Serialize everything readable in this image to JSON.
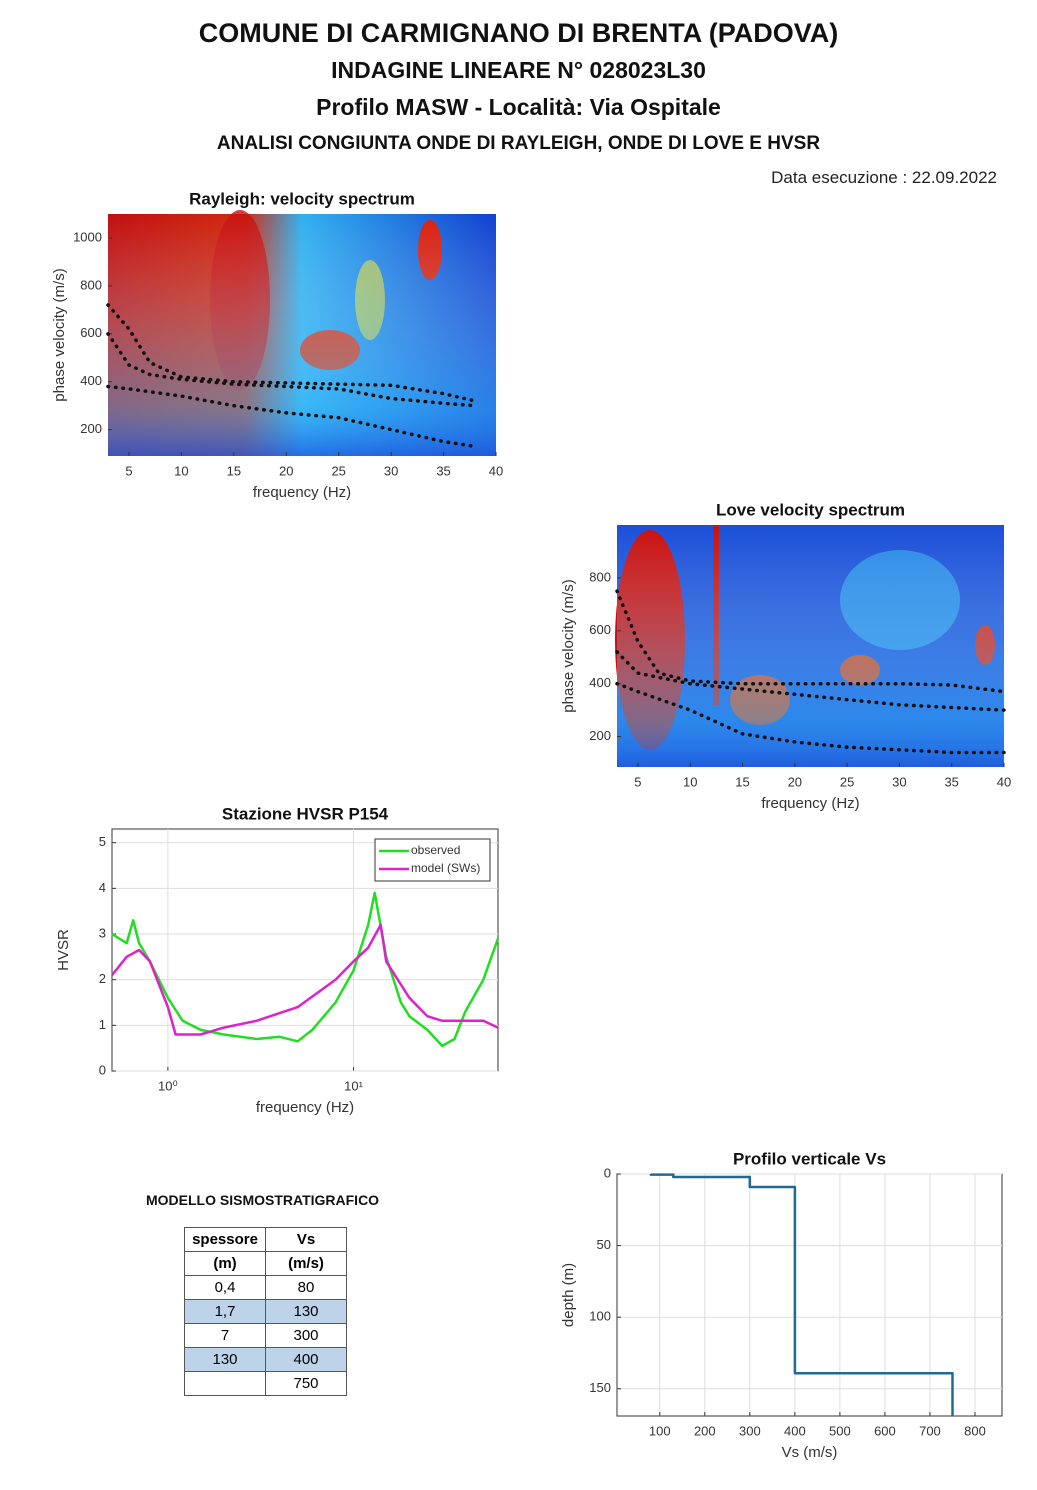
{
  "header": {
    "title": "COMUNE DI  CARMIGNANO DI BRENTA (PADOVA)",
    "subtitle": "INDAGINE LINEARE N° 028023L30",
    "profile": "Profilo MASW  -   Località: Via Ospitale",
    "analysis": "ANALISI CONGIUNTA ONDE DI RAYLEIGH, ONDE DI LOVE E HVSR",
    "date": "Data esecuzione : 22.09.2022"
  },
  "charts": [
    {
      "type": "line",
      "title": "Rayleigh: velocity spectrum",
      "x_label": "frequency (Hz)",
      "y_label": "phase velocity (m/s)",
      "xlim": [
        3,
        40
      ],
      "xticks": [
        5,
        10,
        15,
        20,
        25,
        30,
        35,
        40
      ],
      "ylim": [
        90,
        1100
      ],
      "yticks": [
        200,
        400,
        600,
        800,
        1000
      ],
      "grid": false,
      "line_style": "dotted",
      "series": [
        {
          "color": "#111111",
          "x": [
            3,
            5,
            7,
            10,
            15,
            20,
            25,
            30,
            35,
            38
          ],
          "values": [
            720,
            620,
            480,
            420,
            400,
            395,
            390,
            385,
            350,
            320
          ]
        },
        {
          "color": "#111111",
          "x": [
            3,
            5,
            7,
            10,
            15,
            20,
            25,
            30,
            35,
            38
          ],
          "values": [
            600,
            470,
            430,
            410,
            390,
            380,
            370,
            330,
            310,
            300
          ]
        },
        {
          "color": "#111111",
          "x": [
            3,
            5,
            10,
            15,
            20,
            25,
            30,
            35,
            38
          ],
          "values": [
            380,
            370,
            340,
            300,
            270,
            250,
            200,
            150,
            130
          ]
        }
      ]
    },
    {
      "type": "line",
      "title": "Love velocity spectrum",
      "x_label": "frequency (Hz)",
      "y_label": "phase velocity (m/s)",
      "xlim": [
        3,
        40
      ],
      "xticks": [
        5,
        10,
        15,
        20,
        25,
        30,
        35,
        40
      ],
      "ylim": [
        85,
        1000
      ],
      "yticks": [
        200,
        400,
        600,
        800
      ],
      "grid": false,
      "line_style": "dotted",
      "series": [
        {
          "color": "#111111",
          "x": [
            3,
            5,
            7,
            10,
            15,
            20,
            25,
            30,
            35,
            40
          ],
          "values": [
            750,
            560,
            440,
            410,
            400,
            400,
            400,
            400,
            395,
            370
          ]
        },
        {
          "color": "#111111",
          "x": [
            3,
            5,
            10,
            15,
            20,
            25,
            30,
            35,
            40
          ],
          "values": [
            520,
            440,
            400,
            380,
            360,
            340,
            320,
            310,
            300
          ]
        },
        {
          "color": "#111111",
          "x": [
            3,
            5,
            10,
            15,
            20,
            25,
            30,
            35,
            40
          ],
          "values": [
            400,
            370,
            300,
            210,
            180,
            160,
            150,
            140,
            140
          ]
        }
      ]
    },
    {
      "type": "line",
      "title": "Stazione HVSR P154",
      "x_label": "frequency (Hz)",
      "y_label": "HVSR",
      "xlog": true,
      "xlim": [
        0.5,
        60
      ],
      "xticks": [
        {
          "value": 1,
          "label": "10⁰"
        },
        {
          "value": 10,
          "label": "10¹"
        }
      ],
      "ylim": [
        0,
        5.3
      ],
      "yticks": [
        0,
        1,
        2,
        3,
        4,
        5
      ],
      "grid": true,
      "legend": "upper right",
      "series": [
        {
          "name": "observed",
          "color": "#22dd22",
          "x": [
            0.5,
            0.6,
            0.65,
            0.7,
            0.8,
            1,
            1.2,
            1.5,
            2,
            3,
            4,
            5,
            6,
            8,
            10,
            12,
            13,
            15,
            18,
            20,
            25,
            30,
            35,
            40,
            50,
            60
          ],
          "values": [
            3.0,
            2.8,
            3.3,
            2.8,
            2.4,
            1.6,
            1.1,
            0.9,
            0.8,
            0.7,
            0.75,
            0.65,
            0.9,
            1.5,
            2.2,
            3.2,
            3.9,
            2.5,
            1.5,
            1.2,
            0.9,
            0.55,
            0.7,
            1.3,
            2.0,
            2.9
          ]
        },
        {
          "name": "model (SWs)",
          "color": "#dd22cc",
          "x": [
            0.5,
            0.6,
            0.7,
            0.8,
            1,
            1.1,
            1.5,
            2,
            3,
            5,
            8,
            10,
            12,
            14,
            15,
            20,
            25,
            30,
            40,
            50,
            60
          ],
          "values": [
            2.1,
            2.5,
            2.65,
            2.4,
            1.4,
            0.8,
            0.8,
            0.95,
            1.1,
            1.4,
            2.0,
            2.4,
            2.7,
            3.2,
            2.4,
            1.6,
            1.2,
            1.1,
            1.1,
            1.1,
            0.95
          ]
        }
      ]
    },
    {
      "type": "line",
      "title": "Profilo verticale Vs",
      "x_label": "Vs (m/s)",
      "y_label": "depth (m)",
      "y_reversed": true,
      "xlim": [
        5,
        860
      ],
      "xticks": [
        100,
        200,
        300,
        400,
        500,
        600,
        700,
        800
      ],
      "ylim": [
        0,
        169
      ],
      "yticks": [
        0,
        50,
        100,
        150
      ],
      "grid": true,
      "series": [
        {
          "color": "#1f6b95",
          "x": [
            80,
            80,
            130,
            130,
            300,
            300,
            400,
            400,
            750,
            750
          ],
          "values": [
            0,
            0.4,
            0.4,
            2.1,
            2.1,
            9.1,
            9.1,
            139.1,
            139.1,
            169
          ]
        }
      ]
    }
  ],
  "table": {
    "title": "MODELLO SISMOSTRATIGRAFICO",
    "header": [
      [
        "spessore",
        "Vs"
      ],
      [
        "(m)",
        "(m/s)"
      ]
    ],
    "rows": [
      [
        "0,4",
        "80"
      ],
      [
        "1,7",
        "130"
      ],
      [
        "7",
        "300"
      ],
      [
        "130",
        "400"
      ],
      [
        null,
        "750"
      ]
    ]
  }
}
